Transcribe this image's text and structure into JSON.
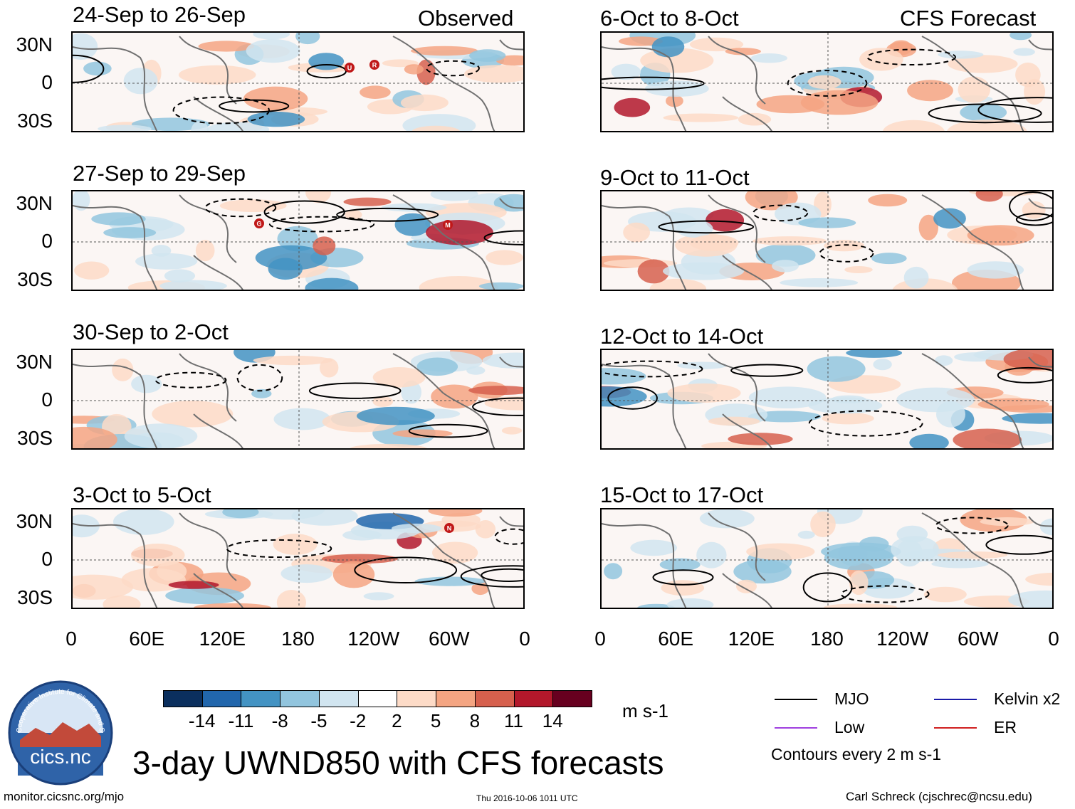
{
  "headers": {
    "observed": "Observed",
    "forecast": "CFS Forecast"
  },
  "panels": [
    {
      "id": "obs-1",
      "title": "24-Sep to 26-Sep",
      "storms": [
        "U",
        "R"
      ]
    },
    {
      "id": "obs-2",
      "title": "27-Sep to 29-Sep",
      "storms": [
        "G",
        "M"
      ]
    },
    {
      "id": "obs-3",
      "title": "30-Sep to 2-Oct",
      "storms": []
    },
    {
      "id": "obs-4",
      "title": "3-Oct to 5-Oct",
      "storms": [
        "N"
      ]
    },
    {
      "id": "fc-1",
      "title": "6-Oct to 8-Oct",
      "storms": []
    },
    {
      "id": "fc-2",
      "title": "9-Oct to 11-Oct",
      "storms": []
    },
    {
      "id": "fc-3",
      "title": "12-Oct to 14-Oct",
      "storms": []
    },
    {
      "id": "fc-4",
      "title": "15-Oct to 17-Oct",
      "storms": []
    }
  ],
  "lat_labels": [
    "30N",
    "0",
    "30S"
  ],
  "lon_labels": [
    "0",
    "60E",
    "120E",
    "180",
    "120W",
    "60W",
    "0"
  ],
  "colorbar": {
    "colors": [
      "#0b2f5e",
      "#2166ac",
      "#4393c3",
      "#92c5de",
      "#d1e5f0",
      "#ffffff",
      "#fddbc7",
      "#f4a582",
      "#d6604d",
      "#b2182b",
      "#67001f"
    ],
    "ticks": [
      "-14",
      "-11",
      "-8",
      "-5",
      "-2",
      "2",
      "5",
      "8",
      "11",
      "14"
    ],
    "units": "m s-1"
  },
  "legend": {
    "items": [
      {
        "label": "MJO",
        "color": "#000000"
      },
      {
        "label": "Kelvin x2",
        "color": "#1a1aa8"
      },
      {
        "label": "Low",
        "color": "#a040e0"
      },
      {
        "label": "ER",
        "color": "#d02020"
      }
    ],
    "note": "Contours every 2 m s-1"
  },
  "logo_text": "cics.nc",
  "logo_ring_text": "Cooperative Institute for Climate and Satellites",
  "main_title": "3-day UWND850 with CFS forecasts",
  "footer": {
    "left": "monitor.cicsnc.org/mjo",
    "center": "Thu 2016-10-06 1011 UTC",
    "right": "Carl Schreck (cjschrec@ncsu.edu)"
  }
}
